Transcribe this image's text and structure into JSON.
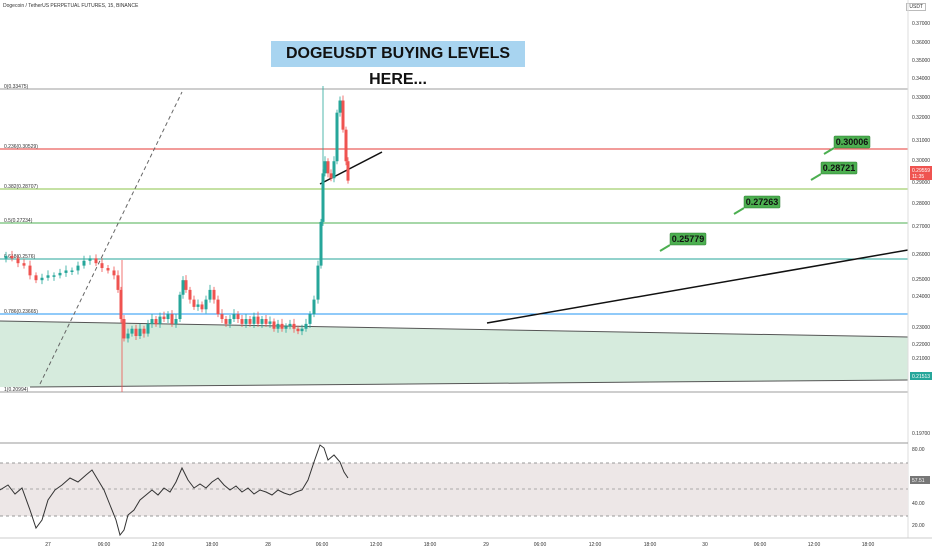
{
  "header": {
    "symbol_title": "Dogecoin / TetherUS PERPETUAL FUTURES, 15, BINANCE",
    "currency": "USDT"
  },
  "headline": "DOGEUSDT BUYING LEVELS HERE...",
  "price_axis": {
    "ticks": [
      "0.37000",
      "0.36000",
      "0.35000",
      "0.34000",
      "0.33000",
      "0.32000",
      "0.31000",
      "0.30000",
      "0.29000",
      "0.28000",
      "0.27000",
      "0.26000",
      "0.25000",
      "0.24000",
      "0.23000",
      "0.22000",
      "0.21000",
      "0.20000",
      "0.19700"
    ],
    "current_price": "0.29559",
    "current_countdown": "11:35",
    "support_label": "0.21513"
  },
  "fib_levels": [
    {
      "label": "0(0.33475)",
      "color": "#9e9e9e"
    },
    {
      "label": "0.236(0.30529)",
      "color": "#e53935"
    },
    {
      "label": "0.382(0.28707)",
      "color": "#8bc34a"
    },
    {
      "label": "0.5(0.27234)",
      "color": "#4caf50"
    },
    {
      "label": "0.618(0.2576)",
      "color": "#26a69a"
    },
    {
      "label": "0.786(0.23665)",
      "color": "#2196f3"
    },
    {
      "label": "1(0.20994)",
      "color": "#9e9e9e"
    }
  ],
  "targets": [
    {
      "label": "0.30006"
    },
    {
      "label": "0.28721"
    },
    {
      "label": "0.27263"
    },
    {
      "label": "0.25779"
    }
  ],
  "rsi_axis": {
    "ticks": [
      "80.00",
      "40.00",
      "20.00"
    ],
    "value": "57.51"
  },
  "time_axis": {
    "ticks": [
      "27",
      "06:00",
      "12:00",
      "18:00",
      "28",
      "06:00",
      "12:00",
      "18:00",
      "29",
      "06:00",
      "12:00",
      "18:00",
      "30",
      "06:00",
      "12:00",
      "18:00"
    ]
  },
  "colors": {
    "up": "#26a69a",
    "down": "#ef5350",
    "target_bg": "#4caf50",
    "headline_bg": "#a8d4f0",
    "zone_fill": "#cfe8d8",
    "rsi_band": "#ede7e7"
  }
}
